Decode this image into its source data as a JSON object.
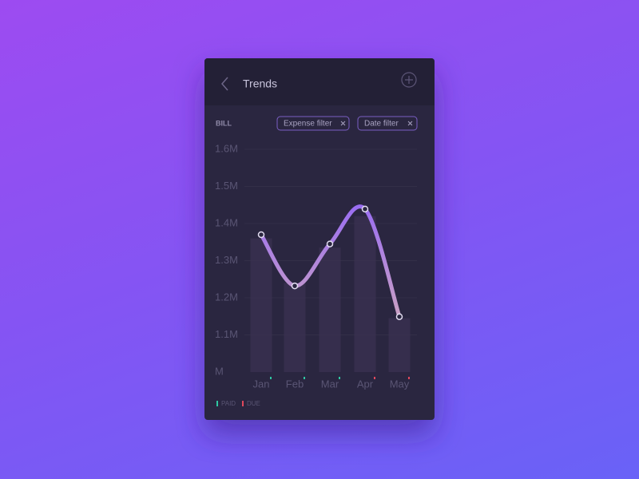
{
  "header": {
    "title": "Trends"
  },
  "filters": [
    "Expense filter",
    "Date filter"
  ],
  "chart_data": {
    "type": "line",
    "y_label": "BILL",
    "categories": [
      "Jan",
      "Feb",
      "Mar",
      "Apr",
      "May"
    ],
    "series": [
      {
        "type": "bar",
        "color": "#3a3150",
        "values": [
          1360000,
          1240000,
          1335000,
          1420000,
          1145000
        ]
      },
      {
        "type": "line",
        "color": "#9a6ef2",
        "values": [
          1370000,
          1232000,
          1345000,
          1439000,
          1149000
        ]
      }
    ],
    "ylim": [
      1000000,
      1600000
    ],
    "yticks": [
      {
        "value": 1000000,
        "label": "M"
      },
      {
        "value": 1100000,
        "label": "1.1M"
      },
      {
        "value": 1200000,
        "label": "1.2M"
      },
      {
        "value": 1300000,
        "label": "1.3M"
      },
      {
        "value": 1400000,
        "label": "1.4M"
      },
      {
        "value": 1500000,
        "label": "1.5M"
      },
      {
        "value": 1600000,
        "label": "1.6M"
      }
    ],
    "grid": true,
    "legend": [
      {
        "label": "PAID",
        "color": "#2fc7a2"
      },
      {
        "label": "DUE",
        "color": "#e0485c"
      }
    ],
    "status": [
      0,
      0,
      0,
      1,
      1
    ]
  }
}
